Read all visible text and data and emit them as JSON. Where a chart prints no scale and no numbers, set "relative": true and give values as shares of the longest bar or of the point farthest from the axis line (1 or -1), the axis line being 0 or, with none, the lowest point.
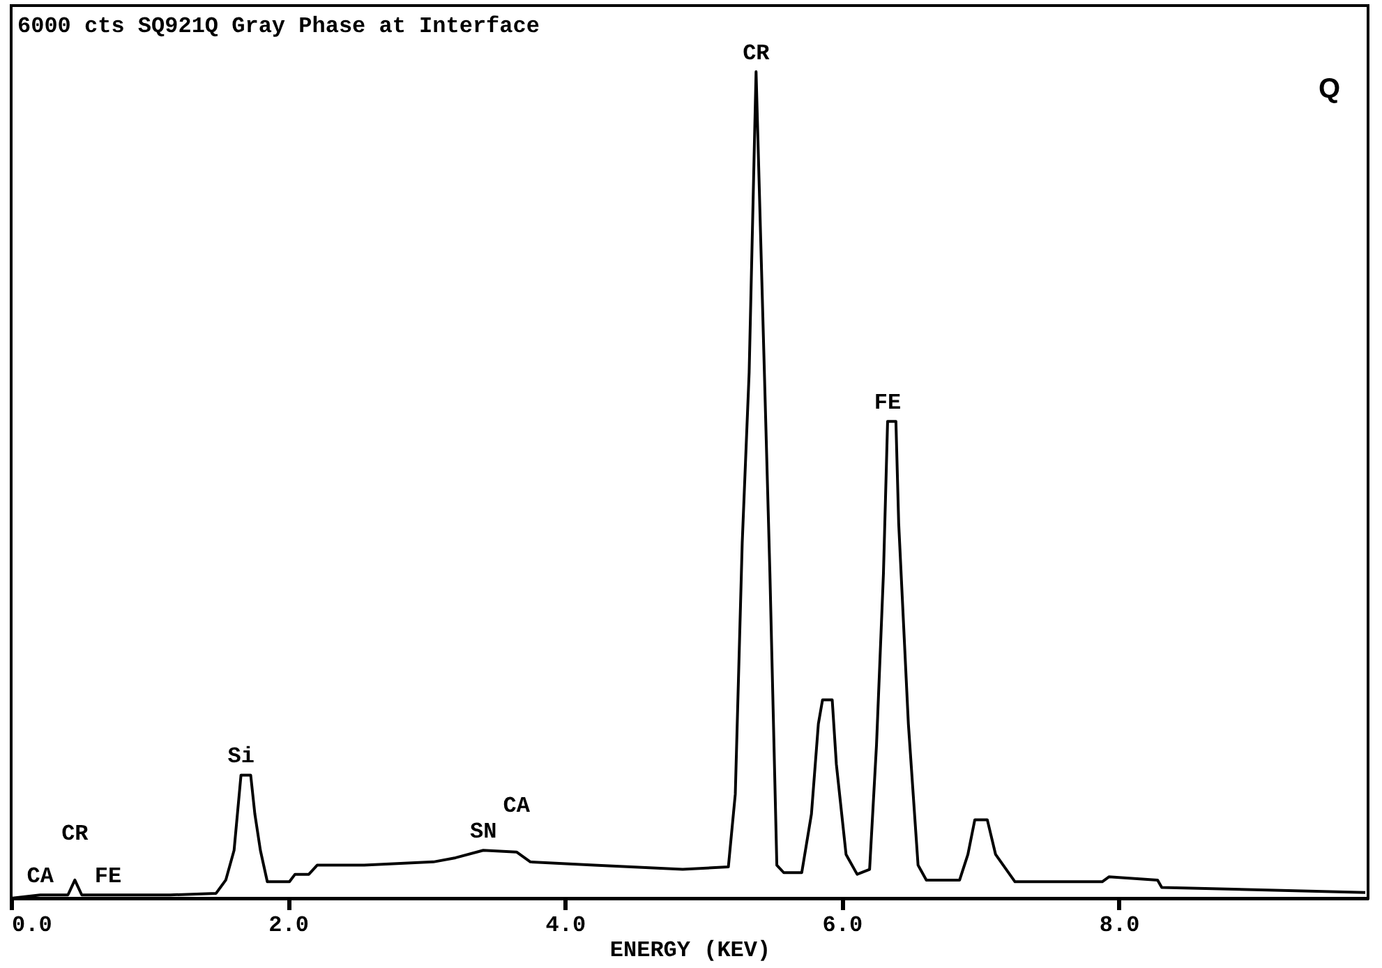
{
  "chart_data": {
    "type": "line",
    "title": "6000 cts    SQ921Q   Gray Phase at Interface",
    "xlabel": "ENERGY (KEV)",
    "relative": true,
    "color": "#000000",
    "x": [
      0.0,
      0.21,
      0.41,
      0.46,
      0.51,
      0.7,
      1.15,
      1.48,
      1.55,
      1.61,
      1.66,
      1.73,
      1.76,
      1.8,
      1.85,
      2.01,
      2.05,
      2.15,
      2.21,
      2.55,
      3.05,
      3.21,
      3.41,
      3.65,
      3.75,
      4.21,
      4.85,
      5.18,
      5.23,
      5.28,
      5.33,
      5.38,
      5.45,
      5.48,
      5.53,
      5.58,
      5.71,
      5.78,
      5.83,
      5.86,
      5.93,
      5.96,
      6.03,
      6.11,
      6.2,
      6.25,
      6.3,
      6.33,
      6.39,
      6.41,
      6.48,
      6.55,
      6.61,
      6.85,
      6.91,
      6.96,
      7.05,
      7.11,
      7.25,
      7.88,
      7.93,
      8.28,
      8.31,
      9.78
    ],
    "values": [
      0.0,
      0.004,
      0.004,
      0.022,
      0.004,
      0.004,
      0.004,
      0.006,
      0.022,
      0.058,
      0.149,
      0.149,
      0.102,
      0.058,
      0.02,
      0.02,
      0.029,
      0.029,
      0.04,
      0.04,
      0.044,
      0.049,
      0.058,
      0.056,
      0.044,
      0.04,
      0.035,
      0.038,
      0.126,
      0.43,
      0.636,
      1.0,
      0.576,
      0.393,
      0.04,
      0.031,
      0.031,
      0.102,
      0.211,
      0.24,
      0.24,
      0.162,
      0.053,
      0.029,
      0.035,
      0.186,
      0.393,
      0.577,
      0.577,
      0.454,
      0.211,
      0.04,
      0.022,
      0.022,
      0.053,
      0.095,
      0.095,
      0.053,
      0.02,
      0.02,
      0.026,
      0.022,
      0.013,
      0.007
    ],
    "xlim": [
      0,
      9.8
    ],
    "xticks": [
      {
        "value": 0,
        "label": "0.0"
      },
      {
        "value": 2,
        "label": "2.0"
      },
      {
        "value": 4,
        "label": "4.0"
      },
      {
        "value": 6,
        "label": "6.0"
      },
      {
        "value": 8,
        "label": "8.0"
      }
    ],
    "annotations": [
      {
        "text": "CR",
        "x": 5.38,
        "y": 1.0
      },
      {
        "text": "FE",
        "x": 6.33,
        "y": 0.577
      },
      {
        "text": "Si",
        "x": 1.66,
        "y": 0.149
      },
      {
        "text": "SN",
        "x": 3.41,
        "y": 0.058
      },
      {
        "text": "CA",
        "x": 3.65,
        "y": 0.056
      },
      {
        "text": "CA",
        "x": 0.21,
        "y": 0.004
      },
      {
        "text": "CR",
        "x": 0.46,
        "y": 0.022
      },
      {
        "text": "FE",
        "x": 0.7,
        "y": 0.004
      },
      "Q"
    ]
  }
}
